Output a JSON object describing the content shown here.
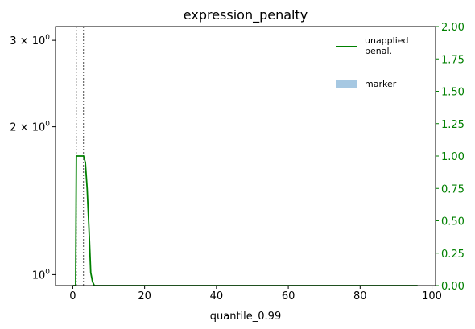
{
  "chart_data": {
    "type": "line",
    "title": "expression_penalty",
    "xlabel": "quantile_0.99",
    "ylabel": "",
    "xlim": [
      -4.8,
      101
    ],
    "x_ticks": [
      {
        "value": 0,
        "label": "0"
      },
      {
        "value": 20,
        "label": "20"
      },
      {
        "value": 40,
        "label": "40"
      },
      {
        "value": 60,
        "label": "60"
      },
      {
        "value": 80,
        "label": "80"
      },
      {
        "value": 100,
        "label": "100"
      }
    ],
    "left_axis": {
      "scale": "log",
      "ylim": [
        0.95,
        3.2
      ],
      "ticks": [
        {
          "value": 1,
          "base": "10",
          "exp": "0",
          "coef": ""
        },
        {
          "value": 2,
          "base": "10",
          "exp": "0",
          "coef": "2 × "
        },
        {
          "value": 3,
          "base": "10",
          "exp": "0",
          "coef": "3 × "
        }
      ]
    },
    "right_axis": {
      "scale": "linear",
      "ylim": [
        0,
        2
      ],
      "color": "#008000",
      "ticks": [
        "0.00",
        "0.25",
        "0.50",
        "0.75",
        "1.00",
        "1.25",
        "1.50",
        "1.75",
        "2.00"
      ]
    },
    "markers": [
      1,
      3
    ],
    "series": [
      {
        "name": "unapplied\npenal.",
        "axis": "right",
        "color": "#008000",
        "x": [
          0,
          0.8,
          1,
          2,
          3,
          3.5,
          4,
          4.5,
          5,
          5.5,
          6,
          10,
          20,
          40,
          60,
          80,
          96
        ],
        "y": [
          0,
          0,
          1,
          1,
          1,
          0.95,
          0.75,
          0.45,
          0.1,
          0.03,
          0,
          0,
          0,
          0,
          0,
          0,
          0
        ]
      }
    ],
    "legend": {
      "placement": "top-right",
      "entries": [
        {
          "label_lines": [
            "unapplied",
            "penal."
          ],
          "kind": "line",
          "color": "#008000"
        },
        {
          "label_lines": [
            "marker"
          ],
          "kind": "patch",
          "color": "#a6c8e2"
        }
      ]
    },
    "grid": false
  }
}
